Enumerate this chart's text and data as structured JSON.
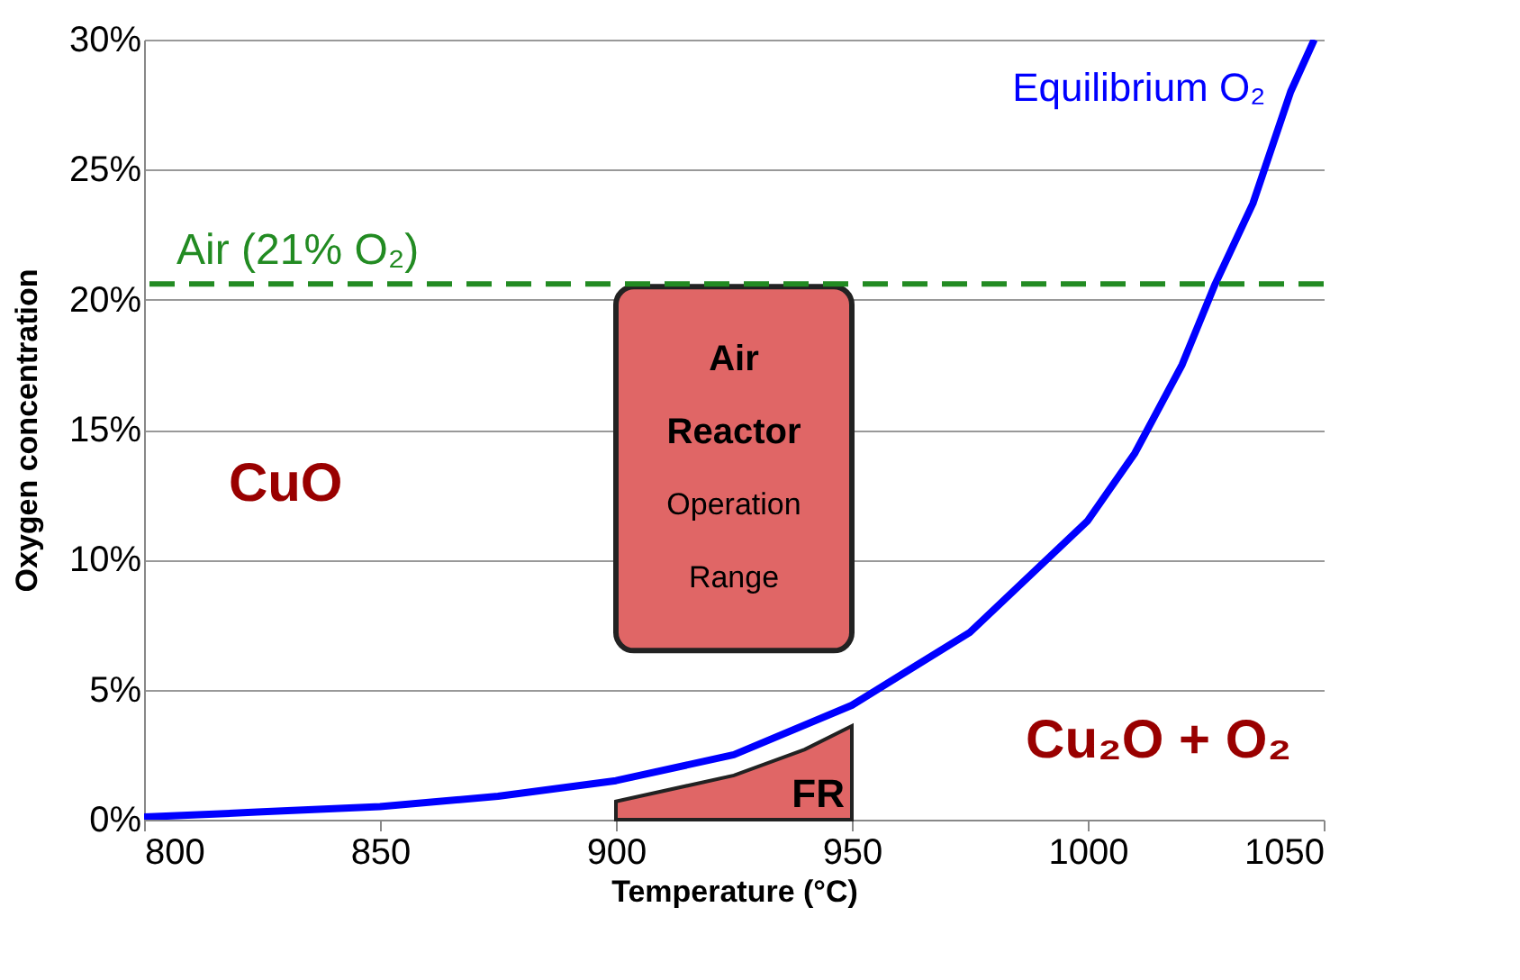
{
  "chart_data": {
    "type": "line",
    "xlabel": "Temperature (°C)",
    "ylabel": "Oxygen concentration",
    "xlim": [
      800,
      1050
    ],
    "xticks": [
      800,
      850,
      900,
      950,
      1000,
      1050
    ],
    "ylim": [
      0,
      30
    ],
    "yticks": [
      {
        "value": 0,
        "label": "0%"
      },
      {
        "value": 5,
        "label": "5%"
      },
      {
        "value": 10,
        "label": "10%"
      },
      {
        "value": 15,
        "label": "15%"
      },
      {
        "value": 20,
        "label": "20%"
      },
      {
        "value": 25,
        "label": "25%"
      },
      {
        "value": 30,
        "label": "30%"
      }
    ],
    "grid": "y",
    "series": [
      {
        "name": "Equilibrium O₂",
        "color": "#0000ff",
        "x": [
          800,
          825,
          850,
          875,
          900,
          925,
          950,
          975,
          1000,
          1010,
          1020,
          1027,
          1035,
          1043,
          1048
        ],
        "values": [
          0.1,
          0.3,
          0.5,
          0.9,
          1.5,
          2.5,
          4.4,
          7.2,
          11.5,
          14.1,
          17.5,
          20.6,
          23.7,
          28,
          30
        ]
      },
      {
        "name": "Air Reactor Operation Range",
        "type": "bar",
        "color": "#e06666",
        "x": [
          925
        ],
        "base": [
          6.5
        ],
        "values": [
          14
        ]
      },
      {
        "name": "FR",
        "type": "area",
        "color": "#e06666",
        "x": [
          900,
          925,
          940,
          950
        ],
        "values": [
          0.7,
          1.7,
          2.7,
          3.6
        ]
      }
    ],
    "ref_lines": [
      {
        "axis": "y",
        "value": 20.6,
        "label": "Air (21% O₂)",
        "color": "#228b22",
        "line_style": "dashed"
      }
    ],
    "annotations": [
      "CuO",
      "Cu₂O + O₂"
    ]
  }
}
